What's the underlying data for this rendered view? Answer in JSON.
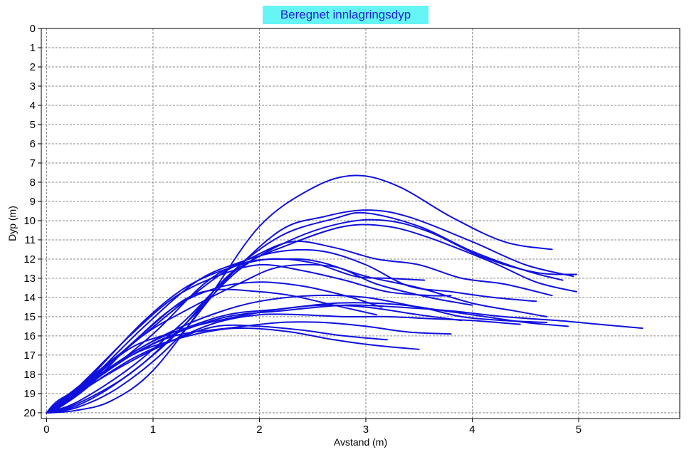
{
  "chart_data": {
    "type": "line",
    "title": "Beregnet innlagringsdyp",
    "xlabel": "Avstand (m)",
    "ylabel": "Dyp (m)",
    "xlim": [
      -0.05,
      5.95
    ],
    "ylim": [
      20.3,
      0
    ],
    "y_inverted": true,
    "xticks": [
      0,
      1,
      2,
      3,
      4,
      5
    ],
    "yticks": [
      0,
      1,
      2,
      3,
      4,
      5,
      6,
      7,
      8,
      9,
      10,
      11,
      12,
      13,
      14,
      15,
      16,
      17,
      18,
      19,
      20
    ],
    "grid": true,
    "line_color": "#1010dd",
    "title_background": "#66f5f5",
    "series": [
      {
        "x": [
          0,
          0.25,
          0.6,
          1.0,
          1.5,
          2.0,
          2.5,
          2.9,
          3.3,
          3.8,
          4.3,
          4.75
        ],
        "y": [
          20,
          19.9,
          19.4,
          17.8,
          14.2,
          10.3,
          8.3,
          7.65,
          8.2,
          9.8,
          11.1,
          11.5
        ]
      },
      {
        "x": [
          0,
          0.3,
          0.7,
          1.2,
          1.7,
          2.2,
          2.6,
          3.0,
          3.4,
          4.0,
          4.5,
          4.95
        ],
        "y": [
          20,
          19.7,
          18.6,
          16.3,
          13.0,
          10.5,
          9.8,
          9.45,
          9.8,
          11.1,
          12.3,
          12.9
        ]
      },
      {
        "x": [
          0,
          0.3,
          0.7,
          1.2,
          1.7,
          2.2,
          2.7,
          3.0,
          3.5,
          4.0,
          4.5,
          4.85
        ],
        "y": [
          20,
          19.6,
          18.3,
          16.0,
          12.9,
          10.8,
          9.9,
          9.6,
          10.3,
          11.6,
          12.6,
          13.1
        ]
      },
      {
        "x": [
          0,
          0.3,
          0.8,
          1.3,
          1.8,
          2.3,
          2.8,
          3.2,
          3.6,
          4.1,
          4.6,
          4.98
        ],
        "y": [
          20,
          19.5,
          17.9,
          15.4,
          12.6,
          11.0,
          10.1,
          10.0,
          10.6,
          11.9,
          12.7,
          12.8
        ]
      },
      {
        "x": [
          0,
          0.3,
          0.8,
          1.3,
          1.8,
          2.3,
          2.8,
          3.2,
          3.6,
          4.2,
          4.6,
          4.98
        ],
        "y": [
          20,
          19.4,
          17.6,
          15.2,
          12.5,
          11.2,
          10.3,
          10.3,
          10.9,
          12.2,
          13.2,
          13.7
        ]
      },
      {
        "x": [
          0,
          0.15,
          0.5,
          1.0,
          1.5,
          1.9,
          2.3,
          2.7,
          3.1,
          3.5,
          3.9,
          4.3,
          4.75
        ],
        "y": [
          20,
          19.3,
          18.1,
          15.9,
          13.2,
          12.0,
          11.1,
          11.4,
          12.0,
          12.3,
          13.0,
          13.3,
          13.9
        ]
      },
      {
        "x": [
          0,
          0.1,
          0.4,
          0.9,
          1.4,
          1.8,
          2.2,
          2.6,
          3.0,
          3.4,
          3.8,
          4.2,
          4.6
        ],
        "y": [
          20,
          19.4,
          18.3,
          15.6,
          13.2,
          12.2,
          11.6,
          11.6,
          12.3,
          13.4,
          13.7,
          14.0,
          14.2
        ]
      },
      {
        "x": [
          0,
          0.1,
          0.4,
          0.9,
          1.3,
          1.8,
          2.3,
          2.6,
          3.0,
          3.5,
          4.0,
          4.4,
          4.7
        ],
        "y": [
          20,
          19.5,
          18.2,
          16.0,
          14.2,
          12.3,
          12.0,
          12.2,
          12.9,
          13.5,
          14.3,
          14.7,
          15.0
        ]
      },
      {
        "x": [
          0,
          0.1,
          0.4,
          0.9,
          1.3,
          1.8,
          2.2,
          2.7,
          3.1,
          3.6,
          4.0
        ],
        "y": [
          20,
          19.6,
          18.4,
          16.0,
          14.7,
          13.3,
          12.4,
          12.4,
          13.3,
          14.0,
          14.4
        ]
      },
      {
        "x": [
          0,
          0.1,
          0.4,
          0.8,
          1.2,
          1.6,
          2.0,
          2.4,
          2.8,
          3.2,
          3.6,
          3.8
        ],
        "y": [
          20,
          19.7,
          18.1,
          15.9,
          14.0,
          12.9,
          12.3,
          12.6,
          13.1,
          13.7,
          13.9,
          13.9
        ]
      },
      {
        "x": [
          0,
          0.1,
          0.4,
          0.9,
          1.3,
          1.7,
          2.1,
          2.5,
          2.9,
          3.2,
          3.55
        ],
        "y": [
          20,
          19.8,
          18.2,
          15.3,
          13.5,
          12.5,
          12.0,
          12.2,
          12.9,
          13.0,
          13.1
        ]
      },
      {
        "x": [
          0,
          0.1,
          0.4,
          0.9,
          1.3,
          1.6,
          2.0,
          2.3,
          2.7,
          3.1
        ],
        "y": [
          20,
          19.7,
          18.4,
          15.9,
          14.1,
          13.6,
          13.7,
          13.9,
          14.4,
          14.9
        ]
      },
      {
        "x": [
          0,
          0.1,
          0.4,
          0.8,
          1.2,
          1.6,
          2.0,
          2.4,
          2.8,
          3.15
        ],
        "y": [
          20,
          19.8,
          18.6,
          16.4,
          14.5,
          13.5,
          13.2,
          13.4,
          13.9,
          14.5
        ]
      },
      {
        "x": [
          0,
          0.1,
          0.4,
          0.8,
          1.2,
          1.7,
          2.2,
          2.7,
          3.1,
          3.5,
          3.9,
          4.3,
          4.7
        ],
        "y": [
          20,
          19.6,
          18.3,
          16.6,
          15.8,
          14.9,
          14.6,
          14.3,
          14.3,
          14.5,
          15.0,
          15.2,
          15.3
        ]
      },
      {
        "x": [
          0,
          0.1,
          0.4,
          0.8,
          1.2,
          1.7,
          2.2,
          2.8,
          3.3,
          3.8,
          4.3,
          4.8,
          5.2,
          5.6
        ],
        "y": [
          20,
          19.7,
          18.5,
          17.0,
          15.9,
          15.0,
          14.7,
          14.4,
          14.5,
          14.7,
          15.0,
          15.2,
          15.4,
          15.6
        ]
      },
      {
        "x": [
          0,
          0.1,
          0.4,
          0.8,
          1.2,
          1.7,
          2.2,
          2.6,
          3.0,
          3.4,
          3.8
        ],
        "y": [
          20,
          19.8,
          18.4,
          17.0,
          16.0,
          15.6,
          15.3,
          15.3,
          15.5,
          15.8,
          15.9
        ]
      },
      {
        "x": [
          0,
          0.1,
          0.4,
          0.8,
          1.2,
          1.6,
          1.9,
          2.3,
          2.7,
          3.1,
          3.5
        ],
        "y": [
          20,
          19.8,
          18.5,
          17.0,
          16.2,
          15.7,
          15.6,
          15.8,
          16.2,
          16.5,
          16.7
        ]
      },
      {
        "x": [
          0,
          0.1,
          0.4,
          0.8,
          1.2,
          1.6,
          2.0,
          2.4,
          2.8,
          3.2
        ],
        "y": [
          20,
          19.7,
          18.6,
          17.2,
          16.2,
          15.5,
          15.5,
          15.7,
          16.0,
          16.2
        ]
      },
      {
        "x": [
          0,
          0.1,
          0.4,
          0.8,
          1.2,
          1.6,
          2.0,
          2.5,
          3.0,
          3.5,
          4.0,
          4.5,
          4.9
        ],
        "y": [
          20,
          19.7,
          18.4,
          16.9,
          15.7,
          14.8,
          14.2,
          13.9,
          14.0,
          14.5,
          14.9,
          15.3,
          15.5
        ]
      },
      {
        "x": [
          0,
          0.1,
          0.4,
          0.8,
          1.2,
          1.6,
          2.0,
          2.4,
          2.8,
          3.2,
          3.6,
          4.0,
          4.45
        ],
        "y": [
          20,
          19.8,
          18.6,
          17.3,
          16.2,
          15.3,
          14.9,
          14.9,
          15.0,
          15.0,
          15.1,
          15.2,
          15.4
        ]
      },
      {
        "x": [
          0,
          0.1,
          0.4,
          0.8,
          1.2,
          1.7,
          2.2,
          2.6,
          3.0,
          3.5,
          3.9
        ],
        "y": [
          20,
          19.7,
          18.4,
          16.9,
          15.8,
          15.1,
          14.6,
          14.4,
          14.5,
          14.9,
          15.2
        ]
      }
    ]
  }
}
